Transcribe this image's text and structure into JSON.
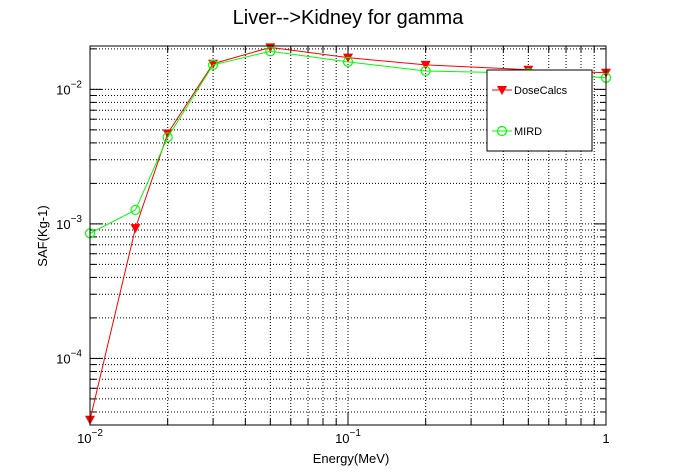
{
  "chart_data": {
    "type": "line",
    "title": "Liver-->Kidney for gamma",
    "xlabel": "Energy(MeV)",
    "ylabel": "SAF(Kg-1)",
    "x_scale": "log",
    "y_scale": "log",
    "xlim": [
      0.01,
      1
    ],
    "ylim": [
      3.2e-05,
      0.021
    ],
    "grid": true,
    "legend_position": "top-right",
    "x_ticks": [
      {
        "value": 0.01,
        "base": "10",
        "exp": "−2"
      },
      {
        "value": 0.1,
        "base": "10",
        "exp": "−1"
      },
      {
        "value": 1,
        "base": "1",
        "exp": ""
      }
    ],
    "y_ticks": [
      {
        "value": 0.0001,
        "base": "10",
        "exp": "−4"
      },
      {
        "value": 0.001,
        "base": "10",
        "exp": "−3"
      },
      {
        "value": 0.01,
        "base": "10",
        "exp": "−2"
      }
    ],
    "series": [
      {
        "name": "DoseCalcs",
        "color": "#ff0000",
        "marker": "triangle-down",
        "x": [
          0.01,
          0.015,
          0.02,
          0.03,
          0.05,
          0.1,
          0.2,
          0.5,
          1.0
        ],
        "y": [
          3.5e-05,
          0.00093,
          0.0047,
          0.0155,
          0.0205,
          0.0172,
          0.0152,
          0.014,
          0.0133
        ]
      },
      {
        "name": "MIRD",
        "color": "#00ff00",
        "marker": "circle-open",
        "x": [
          0.01,
          0.015,
          0.02,
          0.03,
          0.05,
          0.1,
          0.2,
          0.5,
          1.0
        ],
        "y": [
          0.00085,
          0.00127,
          0.0044,
          0.0152,
          0.0192,
          0.016,
          0.0137,
          0.0132,
          0.0122
        ]
      }
    ]
  }
}
